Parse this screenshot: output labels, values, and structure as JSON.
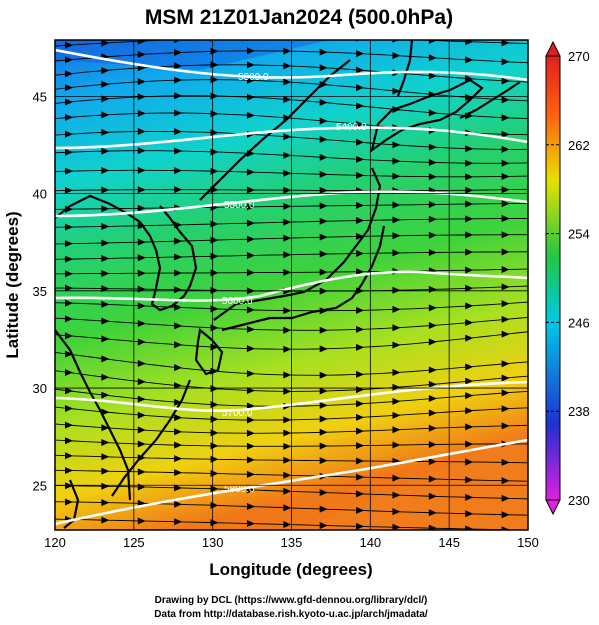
{
  "title": "MSM 21Z01Jan2024 (500.0hPa)",
  "x_axis": {
    "label": "Longitude (degrees)",
    "ticks": [
      "120",
      "125",
      "130",
      "135",
      "140",
      "145",
      "150"
    ]
  },
  "y_axis": {
    "label": "Latitude  (degrees)",
    "ticks": [
      "25",
      "30",
      "35",
      "40",
      "45"
    ]
  },
  "colorbar": {
    "ticks": [
      "270",
      "262",
      "254",
      "246",
      "238",
      "230"
    ],
    "range": [
      230,
      270
    ],
    "colors": [
      "#e020e0",
      "#2030d0",
      "#00c8e8",
      "#20c840",
      "#e8e000",
      "#ff6010",
      "#e02020"
    ]
  },
  "map": {
    "lon_range": [
      120,
      150
    ],
    "lat_range": [
      22.7,
      47.9
    ],
    "fill": "temperature",
    "vectors": "wind streamlines",
    "contours": [
      {
        "label": "5300.0"
      },
      {
        "label": "5400.0"
      },
      {
        "label": "5500.0"
      },
      {
        "label": "5600.0"
      },
      {
        "label": "5700.0"
      },
      {
        "label": "5800.0"
      }
    ]
  },
  "credits": {
    "line1": "Drawing by DCL (https://www.gfd-dennou.org/library/dcl/)",
    "line2": "Data from http://database.rish.kyoto-u.ac.jp/arch/jmadata/"
  }
}
